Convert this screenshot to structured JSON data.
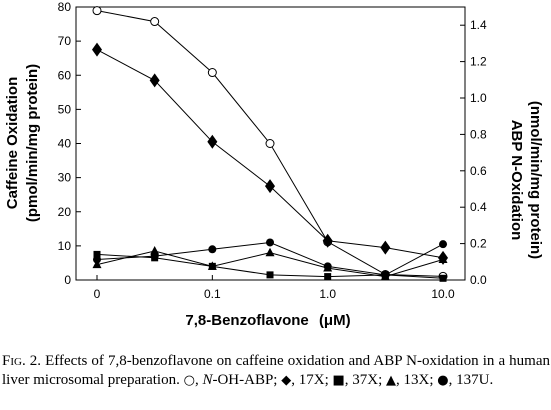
{
  "chart_data": {
    "type": "line",
    "xlabel": "7,8-Benzoflavone",
    "xlabel_unit": "(μM)",
    "x_ticks": [
      "0",
      "0.1",
      "1.0",
      "10.0"
    ],
    "left_axis": {
      "label_line1": "Caffeine Oxidation",
      "label_line2": "(pmol/min/mg protein)",
      "ylim": [
        0,
        80
      ],
      "ticks": [
        "0",
        "10",
        "20",
        "30",
        "40",
        "50",
        "60",
        "70",
        "80"
      ]
    },
    "right_axis": {
      "label_line1": "ABP N-Oxidation",
      "label_line2": "(nmol/min/mg protein)",
      "ylim": [
        0,
        1.5
      ],
      "ticks": [
        "0.0",
        "0.2",
        "0.4",
        "0.6",
        "0.8",
        "1.0",
        "1.2",
        "1.4"
      ]
    },
    "x_positions": [
      0,
      0.5,
      1,
      1.5,
      2,
      2.5,
      3
    ],
    "series": [
      {
        "name": "N-OH-ABP",
        "marker": "circle-open",
        "axis": "right",
        "values": [
          1.48,
          1.42,
          1.14,
          0.75,
          0.21,
          0.03,
          0.02
        ]
      },
      {
        "name": "17X",
        "marker": "diamond",
        "axis": "left",
        "values": [
          67.5,
          58.5,
          40.5,
          27.5,
          11.5,
          9.5,
          6.5
        ]
      },
      {
        "name": "37X",
        "marker": "square",
        "axis": "left",
        "values": [
          7.5,
          6.5,
          4.0,
          1.5,
          1.0,
          1.5,
          0.5
        ]
      },
      {
        "name": "13X",
        "marker": "triangle",
        "axis": "left",
        "values": [
          4.5,
          8.5,
          4.0,
          8.0,
          3.5,
          1.0,
          6.0
        ]
      },
      {
        "name": "137U",
        "marker": "circle",
        "axis": "left",
        "values": [
          6.0,
          7.0,
          9.0,
          11.0,
          4.0,
          1.5,
          10.5
        ]
      }
    ]
  },
  "caption": {
    "fig_label": "Fig. 2.",
    "text1": "Effects of 7,8-benzoflavone on caffeine oxidation and ABP N-oxidation in a human liver microsomal preparation.",
    "sym_open_circle": "○",
    "item1_name": "N",
    "item1_rest": "-OH-ABP;",
    "sym_diamond": "◆",
    "item2": "17X;",
    "sym_square": "■",
    "item3": "37X;",
    "sym_triangle": "▲",
    "item4": "13X;",
    "sym_circle": "●",
    "item5": "137U."
  }
}
